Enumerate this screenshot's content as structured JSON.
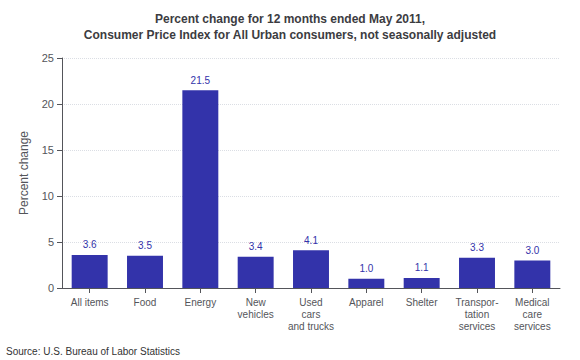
{
  "chart_data": {
    "type": "bar",
    "title": "Percent change for 12 months ended May 2011,\nConsumer Price Index for All Urban consumers, not seasonally adjusted",
    "categories": [
      "All items",
      "Food",
      "Energy",
      "New\nvehicles",
      "Used\ncars\nand trucks",
      "Apparel",
      "Shelter",
      "Transpor-\ntation\nservices",
      "Medical\ncare\nservices"
    ],
    "values": [
      3.6,
      3.5,
      21.5,
      3.4,
      4.1,
      1.0,
      1.1,
      3.3,
      3.0
    ],
    "value_labels": [
      "3.6",
      "3.5",
      "21.5",
      "3.4",
      "4.1",
      "1.0",
      "1.1",
      "3.3",
      "3.0"
    ],
    "data_labels": true,
    "color": "#3333aa",
    "ylabel": "Percent change",
    "ylim": [
      0,
      25
    ],
    "yticks": [
      0,
      5,
      10,
      15,
      20,
      25
    ],
    "grid": true,
    "source": "Source: U.S. Bureau of Labor Statistics"
  }
}
